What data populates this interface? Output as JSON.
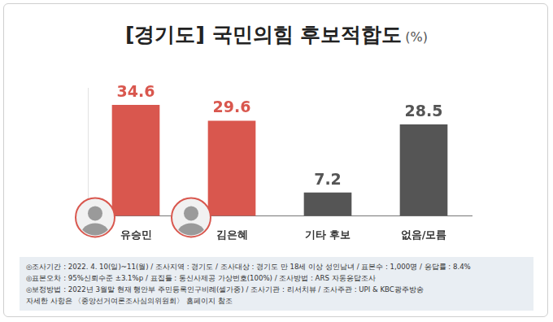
{
  "chart_data": {
    "type": "bar",
    "title": "[경기도] 국민의힘 후보적합도",
    "subtitle": "(%)",
    "categories": [
      "유승민",
      "김은혜",
      "기타 후보",
      "없음/모름"
    ],
    "values": [
      34.6,
      29.6,
      7.2,
      28.5
    ],
    "colors": [
      "#d9574e",
      "#d9574e",
      "#555555",
      "#555555"
    ],
    "ylim": [
      0,
      40
    ],
    "grid": false,
    "data_labels": true,
    "tick_labels": "x"
  },
  "footnotes": [
    "◎조사기간 : 2022. 4. 10(일)~11(월) / 조사지역 : 경기도 / 조사대상 : 경기도 만 18세 이상 성인남녀 / 표본수 : 1,000명 / 응답률 : 8.4%",
    "◎표본오차 : 95%신뢰수준 ±3.1%p / 표집틀 : 통신사제공 가상번호(100%) / 조사방법 : ARS 자동응답조사",
    "◎보정방법 : 2022년 3월말 현재 행안부 주민등록인구비례(셀가중) / 조사기관 : 리서치뷰 / 조사주관 : UPI & KBC광주방송",
    "자세한 사항은 〈중앙선거여론조사심의위원회〉 홈페이지 참조"
  ]
}
